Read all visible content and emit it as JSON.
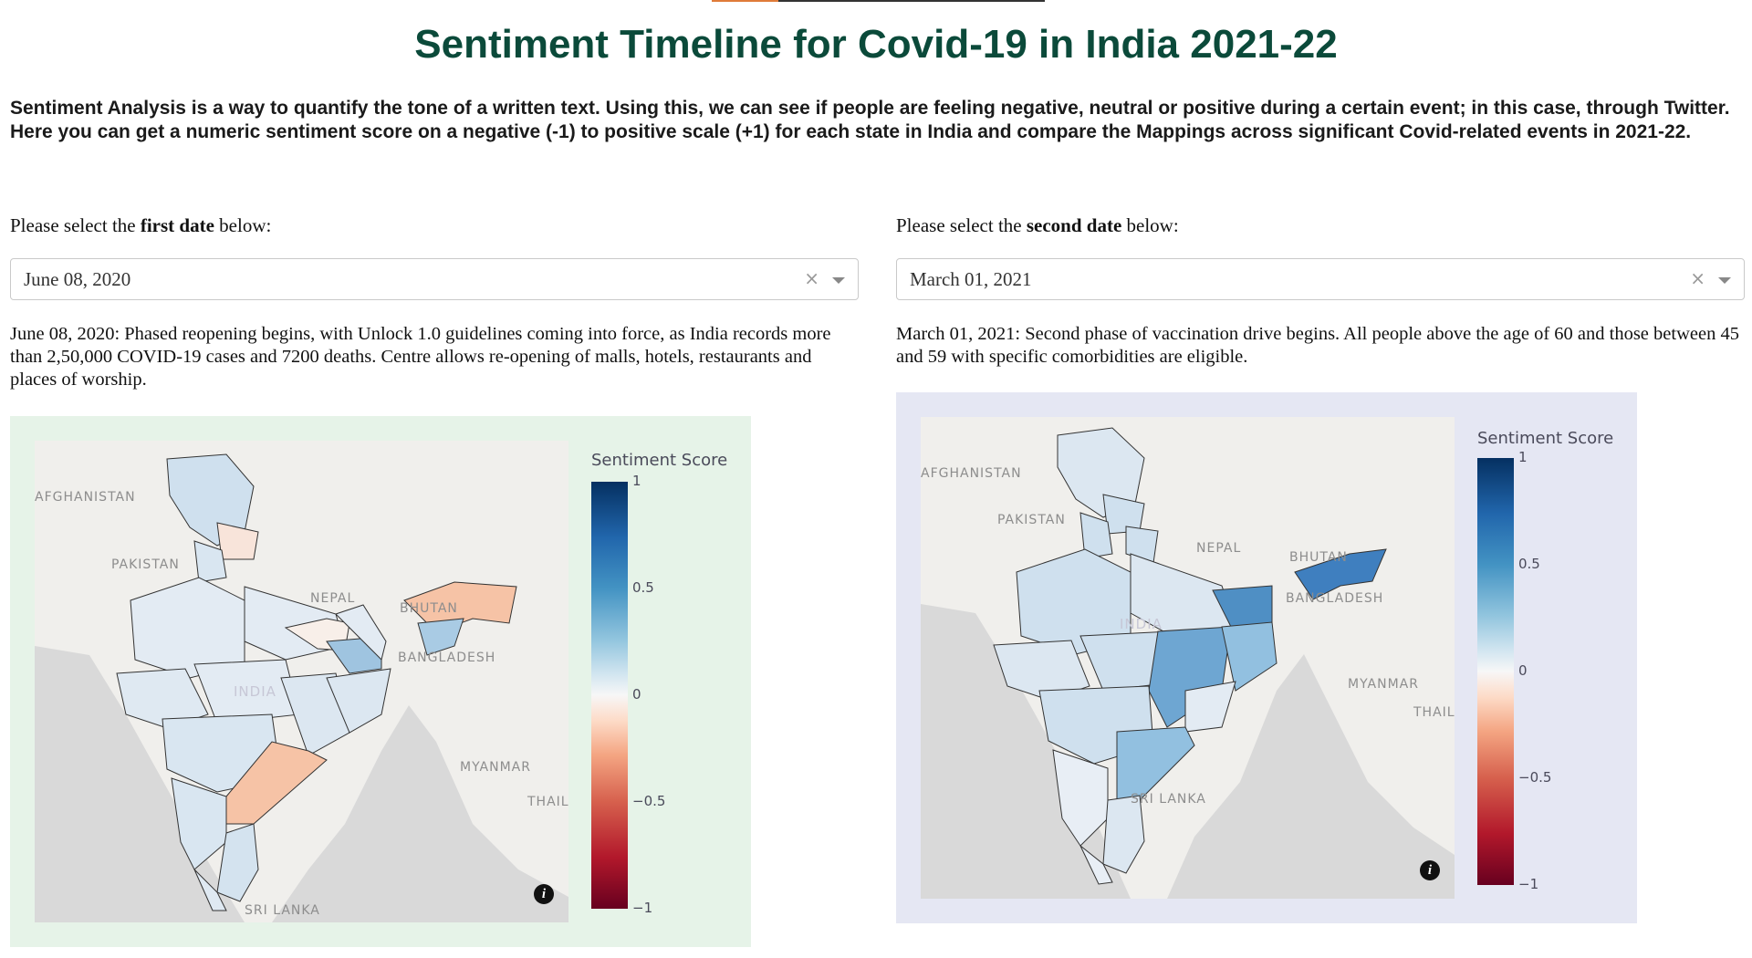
{
  "page": {
    "title": "Sentiment Timeline for Covid-19 in India 2021-22",
    "intro": "Sentiment Analysis is a way to quantify the tone of a written text. Using this, we can see if people are feeling negative, neutral or positive during a certain event; in this case, through Twitter. Here you can get a numeric sentiment score on a negative (-1) to positive scale (+1) for each state in India and compare the Mappings across significant Covid-related events in 2021-22."
  },
  "left": {
    "label_prefix": "Please select the ",
    "label_bold": "first date",
    "label_suffix": " below:",
    "selected_date": "June 08, 2020",
    "clear_glyph": "×",
    "description": "June 08, 2020: Phased reopening begins, with Unlock 1.0 guidelines coming into force, as India records more than 2,50,000 COVID-19 cases and 7200 deaths. Centre allows re-opening of malls, hotels, restaurants and places of worship.",
    "card_color": "#e6f3e8",
    "map_labels": {
      "afghanistan": "AFGHANISTAN",
      "pakistan": "PAKISTAN",
      "nepal": "NEPAL",
      "bhutan": "BHUTAN",
      "bangladesh": "BANGLADESH",
      "india": "INDIA",
      "myanmar": "MYANMAR",
      "thailand": "THAIL",
      "sri_lanka": "SRI LANKA"
    },
    "colorbar": {
      "title": "Sentiment Score",
      "ticks": [
        "1",
        "0.5",
        "0",
        "−0.5",
        "−1"
      ]
    },
    "info_glyph": "i"
  },
  "right": {
    "label_prefix": "Please select the ",
    "label_bold": "second date",
    "label_suffix": " below:",
    "selected_date": "March 01, 2021",
    "clear_glyph": "×",
    "description": "March 01, 2021: Second phase of vaccination drive begins. All people above the age of 60 and those between 45 and 59 with specific comorbidities are eligible.",
    "card_color": "#e5e7f3",
    "map_labels": {
      "afghanistan": "AFGHANISTAN",
      "pakistan": "PAKISTAN",
      "nepal": "NEPAL",
      "bhutan": "BHUTAN",
      "bangladesh": "BANGLADESH",
      "india": "INDIA",
      "myanmar": "MYANMAR",
      "thailand": "THAIL",
      "sri_lanka": "SRI LANKA"
    },
    "colorbar": {
      "title": "Sentiment Score",
      "ticks": [
        "1",
        "0.5",
        "0",
        "−0.5",
        "−1"
      ]
    },
    "info_glyph": "i"
  },
  "colors": {
    "title_green": "#0b4a3a",
    "neutral_state": "#e3ebf3",
    "light_blue_state": "#cfe0ee",
    "mid_blue_state": "#7fb3d6",
    "strong_blue_state": "#4f8fc4",
    "light_orange_state": "#f6c3a6",
    "very_light_orange_state": "#f8e4da"
  }
}
